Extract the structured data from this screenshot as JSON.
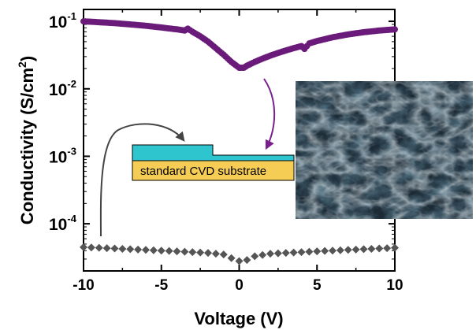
{
  "chart_data": {
    "type": "scatter",
    "xlabel": "Voltage (V)",
    "ylabel_main": "Conductivity (S/cm",
    "ylabel_sup": "2",
    "ylabel_close": ")",
    "yscale": "log",
    "xlim": [
      -10,
      10
    ],
    "ylim": [
      2e-05,
      0.15
    ],
    "x_ticks": [
      {
        "value": -10,
        "label": "-10"
      },
      {
        "value": -5,
        "label": "-5"
      },
      {
        "value": 0,
        "label": "0"
      },
      {
        "value": 5,
        "label": "5"
      },
      {
        "value": 10,
        "label": "10"
      }
    ],
    "y_ticks": [
      {
        "value": 0.1,
        "base": "10",
        "exp": "-1"
      },
      {
        "value": 0.01,
        "base": "10",
        "exp": "-2"
      },
      {
        "value": 0.001,
        "base": "10",
        "exp": "-3"
      },
      {
        "value": 0.0001,
        "base": "10",
        "exp": "-4"
      }
    ],
    "series": [
      {
        "color": "#6a1b7a",
        "marker": "circle",
        "points": [
          [
            -10,
            0.1
          ],
          [
            -9,
            0.097
          ],
          [
            -8,
            0.094
          ],
          [
            -7,
            0.09
          ],
          [
            -6,
            0.086
          ],
          [
            -5,
            0.081
          ],
          [
            -4,
            0.076
          ],
          [
            -3.5,
            0.073
          ],
          [
            -3.3,
            0.078
          ],
          [
            -3.0,
            0.07
          ],
          [
            -2.5,
            0.06
          ],
          [
            -2,
            0.05
          ],
          [
            -1.5,
            0.04
          ],
          [
            -1,
            0.032
          ],
          [
            -0.5,
            0.025
          ],
          [
            0,
            0.0205
          ],
          [
            0.3,
            0.0205
          ],
          [
            0.5,
            0.022
          ],
          [
            1,
            0.025
          ],
          [
            1.5,
            0.028
          ],
          [
            2,
            0.031
          ],
          [
            2.5,
            0.034
          ],
          [
            3,
            0.037
          ],
          [
            3.5,
            0.04
          ],
          [
            4,
            0.043
          ],
          [
            4.2,
            0.039
          ],
          [
            4.5,
            0.047
          ],
          [
            5,
            0.051
          ],
          [
            6,
            0.058
          ],
          [
            7,
            0.064
          ],
          [
            8,
            0.069
          ],
          [
            9,
            0.073
          ],
          [
            10,
            0.076
          ]
        ]
      },
      {
        "color": "#555555",
        "marker": "diamond",
        "points": [
          [
            -10,
            4.5e-05
          ],
          [
            -9,
            4.4e-05
          ],
          [
            -8,
            4.3e-05
          ],
          [
            -7,
            4.2e-05
          ],
          [
            -6,
            4.1e-05
          ],
          [
            -5,
            4e-05
          ],
          [
            -4,
            3.9e-05
          ],
          [
            -3,
            3.8e-05
          ],
          [
            -2,
            3.7e-05
          ],
          [
            -1,
            3.5e-05
          ],
          [
            -0.5,
            3.1e-05
          ],
          [
            0,
            2.8e-05
          ],
          [
            0.5,
            2.9e-05
          ],
          [
            1,
            3.3e-05
          ],
          [
            2,
            3.6e-05
          ],
          [
            3,
            3.7e-05
          ],
          [
            4,
            3.8e-05
          ],
          [
            5,
            3.9e-05
          ],
          [
            6,
            4e-05
          ],
          [
            7,
            4.1e-05
          ],
          [
            8,
            4.2e-05
          ],
          [
            9,
            4.3e-05
          ],
          [
            10,
            4.4e-05
          ]
        ]
      }
    ],
    "annotations": {
      "substrate_label": "standard CVD substrate",
      "layer_color": "#2ec5cf",
      "substrate_color": "#f5cd55",
      "photo_description": "microscope image"
    }
  }
}
